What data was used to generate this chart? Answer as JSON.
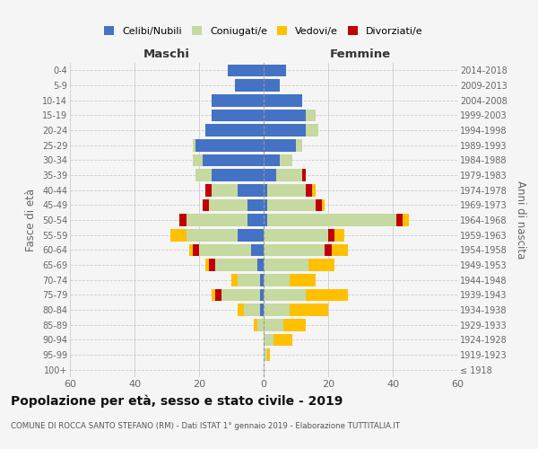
{
  "age_groups": [
    "100+",
    "95-99",
    "90-94",
    "85-89",
    "80-84",
    "75-79",
    "70-74",
    "65-69",
    "60-64",
    "55-59",
    "50-54",
    "45-49",
    "40-44",
    "35-39",
    "30-34",
    "25-29",
    "20-24",
    "15-19",
    "10-14",
    "5-9",
    "0-4"
  ],
  "birth_years": [
    "≤ 1918",
    "1919-1923",
    "1924-1928",
    "1929-1933",
    "1934-1938",
    "1939-1943",
    "1944-1948",
    "1949-1953",
    "1954-1958",
    "1959-1963",
    "1964-1968",
    "1969-1973",
    "1974-1978",
    "1979-1983",
    "1984-1988",
    "1989-1993",
    "1994-1998",
    "1999-2003",
    "2004-2008",
    "2009-2013",
    "2014-2018"
  ],
  "colors": {
    "celibe": "#4472c4",
    "coniugato": "#c6d9a0",
    "vedovo": "#ffc000",
    "divorziato": "#c00000"
  },
  "maschi": {
    "celibe": [
      0,
      0,
      0,
      0,
      1,
      1,
      1,
      2,
      4,
      8,
      5,
      5,
      8,
      16,
      19,
      21,
      18,
      16,
      16,
      9,
      11
    ],
    "coniugato": [
      0,
      0,
      0,
      2,
      5,
      12,
      7,
      13,
      16,
      16,
      19,
      12,
      8,
      5,
      3,
      1,
      0,
      0,
      0,
      0,
      0
    ],
    "vedovo": [
      0,
      0,
      0,
      1,
      2,
      1,
      2,
      1,
      1,
      5,
      0,
      0,
      0,
      0,
      0,
      0,
      0,
      0,
      0,
      0,
      0
    ],
    "divorziato": [
      0,
      0,
      0,
      0,
      0,
      2,
      0,
      2,
      2,
      0,
      2,
      2,
      2,
      0,
      0,
      0,
      0,
      0,
      0,
      0,
      0
    ]
  },
  "femmine": {
    "nubile": [
      0,
      0,
      0,
      0,
      0,
      0,
      0,
      0,
      0,
      0,
      1,
      1,
      1,
      4,
      5,
      10,
      13,
      13,
      12,
      5,
      7
    ],
    "coniugata": [
      0,
      1,
      3,
      6,
      8,
      13,
      8,
      14,
      19,
      20,
      40,
      15,
      12,
      8,
      4,
      2,
      4,
      3,
      0,
      0,
      0
    ],
    "vedova": [
      0,
      1,
      6,
      7,
      12,
      13,
      8,
      8,
      5,
      3,
      2,
      1,
      1,
      0,
      0,
      0,
      0,
      0,
      0,
      0,
      0
    ],
    "divorziata": [
      0,
      0,
      0,
      0,
      0,
      0,
      0,
      0,
      2,
      2,
      2,
      2,
      2,
      1,
      0,
      0,
      0,
      0,
      0,
      0,
      0
    ]
  },
  "xlim": 60,
  "title": "Popolazione per età, sesso e stato civile - 2019",
  "subtitle": "COMUNE DI ROCCA SANTO STEFANO (RM) - Dati ISTAT 1° gennaio 2019 - Elaborazione TUTTITALIA.IT",
  "ylabel_left": "Fasce di età",
  "ylabel_right": "Anni di nascita",
  "xlabel_maschi": "Maschi",
  "xlabel_femmine": "Femmine",
  "legend_labels": [
    "Celibi/Nubili",
    "Coniugati/e",
    "Vedovi/e",
    "Divorziati/e"
  ],
  "bg_color": "#f5f5f5"
}
